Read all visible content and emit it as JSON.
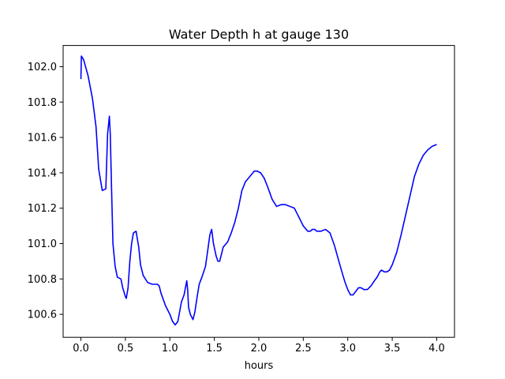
{
  "chart_data": {
    "type": "line",
    "title": "Water Depth h at gauge 130",
    "xlabel": "hours",
    "ylabel": "",
    "xlim": [
      -0.2,
      4.2
    ],
    "ylim": [
      100.47,
      102.12
    ],
    "xticks": [
      0.0,
      0.5,
      1.0,
      1.5,
      2.0,
      2.5,
      3.0,
      3.5,
      4.0
    ],
    "xtick_labels": [
      "0.0",
      "0.5",
      "1.0",
      "1.5",
      "2.0",
      "2.5",
      "3.0",
      "3.5",
      "4.0"
    ],
    "yticks": [
      100.6,
      100.8,
      101.0,
      101.2,
      101.4,
      101.6,
      101.8,
      102.0
    ],
    "ytick_labels": [
      "100.6",
      "100.8",
      "101.0",
      "101.2",
      "101.4",
      "101.6",
      "101.8",
      "102.0"
    ],
    "grid": false,
    "legend": "none",
    "series": [
      {
        "color": "#0000ff",
        "x": [
          0.0,
          0.005,
          0.03,
          0.08,
          0.13,
          0.17,
          0.2,
          0.24,
          0.28,
          0.3,
          0.32,
          0.33,
          0.345,
          0.36,
          0.385,
          0.41,
          0.45,
          0.47,
          0.5,
          0.51,
          0.53,
          0.55,
          0.57,
          0.59,
          0.62,
          0.65,
          0.67,
          0.7,
          0.75,
          0.8,
          0.84,
          0.86,
          0.88,
          0.9,
          0.95,
          1.0,
          1.03,
          1.06,
          1.09,
          1.13,
          1.16,
          1.19,
          1.2,
          1.21,
          1.23,
          1.26,
          1.28,
          1.31,
          1.33,
          1.36,
          1.38,
          1.4,
          1.42,
          1.45,
          1.47,
          1.49,
          1.52,
          1.54,
          1.56,
          1.6,
          1.65,
          1.69,
          1.73,
          1.77,
          1.81,
          1.85,
          1.9,
          1.95,
          1.98,
          2.02,
          2.06,
          2.1,
          2.15,
          2.2,
          2.25,
          2.3,
          2.35,
          2.4,
          2.45,
          2.5,
          2.55,
          2.58,
          2.6,
          2.63,
          2.65,
          2.7,
          2.75,
          2.8,
          2.85,
          2.9,
          2.94,
          2.97,
          3.0,
          3.03,
          3.06,
          3.09,
          3.12,
          3.15,
          3.18,
          3.22,
          3.26,
          3.3,
          3.33,
          3.36,
          3.38,
          3.41,
          3.44,
          3.47,
          3.5,
          3.55,
          3.6,
          3.65,
          3.7,
          3.75,
          3.8,
          3.85,
          3.9,
          3.95,
          4.0
        ],
        "y": [
          101.93,
          102.06,
          102.04,
          101.95,
          101.82,
          101.66,
          101.42,
          101.3,
          101.31,
          101.62,
          101.72,
          101.62,
          101.3,
          101.0,
          100.87,
          100.81,
          100.8,
          100.75,
          100.7,
          100.69,
          100.75,
          100.9,
          101.0,
          101.06,
          101.07,
          100.98,
          100.88,
          100.82,
          100.78,
          100.77,
          100.77,
          100.77,
          100.76,
          100.72,
          100.65,
          100.6,
          100.56,
          100.54,
          100.56,
          100.67,
          100.71,
          100.79,
          100.74,
          100.64,
          100.6,
          100.57,
          100.61,
          100.71,
          100.77,
          100.81,
          100.84,
          100.87,
          100.94,
          101.05,
          101.08,
          101.0,
          100.93,
          100.9,
          100.9,
          100.98,
          101.01,
          101.06,
          101.12,
          101.2,
          101.3,
          101.35,
          101.38,
          101.41,
          101.41,
          101.4,
          101.37,
          101.32,
          101.25,
          101.21,
          101.22,
          101.22,
          101.21,
          101.2,
          101.15,
          101.1,
          101.07,
          101.07,
          101.08,
          101.08,
          101.07,
          101.07,
          101.08,
          101.06,
          100.99,
          100.9,
          100.83,
          100.78,
          100.74,
          100.71,
          100.71,
          100.73,
          100.75,
          100.75,
          100.74,
          100.74,
          100.76,
          100.79,
          100.81,
          100.84,
          100.85,
          100.84,
          100.84,
          100.85,
          100.88,
          100.95,
          101.05,
          101.16,
          101.27,
          101.38,
          101.45,
          101.5,
          101.53,
          101.55,
          101.56
        ]
      }
    ]
  }
}
